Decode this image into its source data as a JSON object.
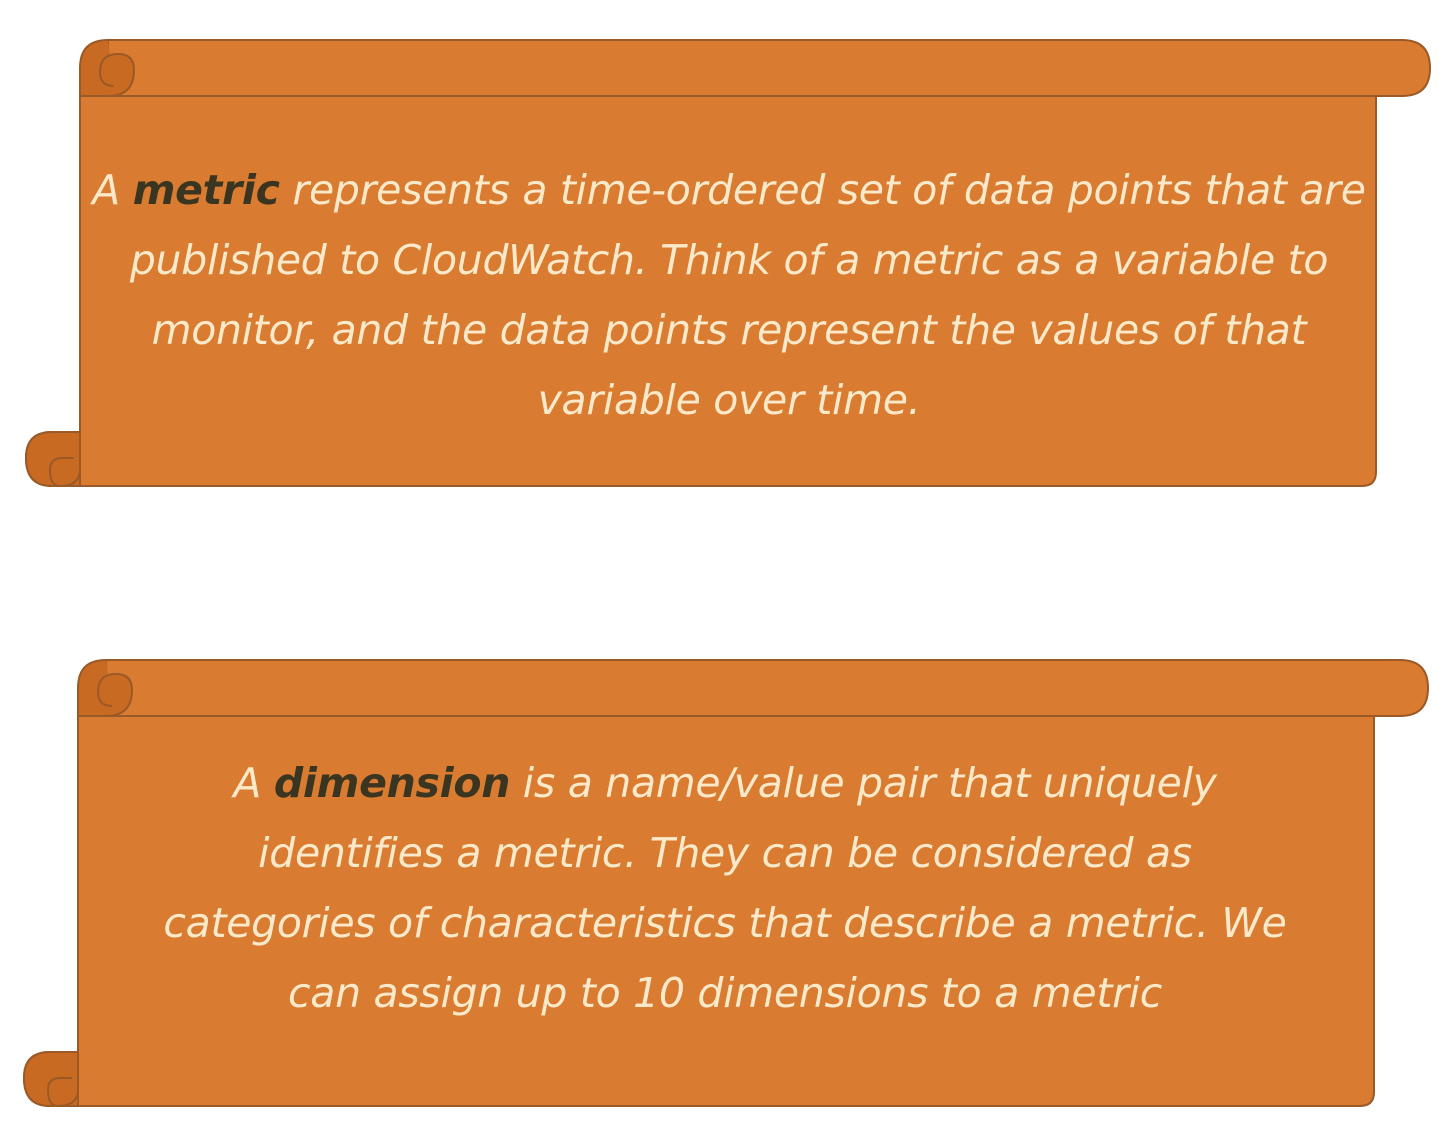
{
  "colors": {
    "scroll_fill": "#d97b30",
    "scroll_shadow": "#b96420",
    "scroll_outline": "#9a5a28",
    "text": "#fbe9c9",
    "term": "#3a3520"
  },
  "scrolls": [
    {
      "lead": "A ",
      "term": "metric",
      "body": " represents a time-ordered set of data points that are published to CloudWatch. Think of a metric as a variable to monitor, and the data points represent the values of that variable over time."
    },
    {
      "lead": "A ",
      "term": "dimension",
      "body": " is a name/value pair that uniquely identifies a metric. They can be considered as categories of characteristics that describe a metric. We can assign up to 10 dimensions to a metric"
    }
  ]
}
